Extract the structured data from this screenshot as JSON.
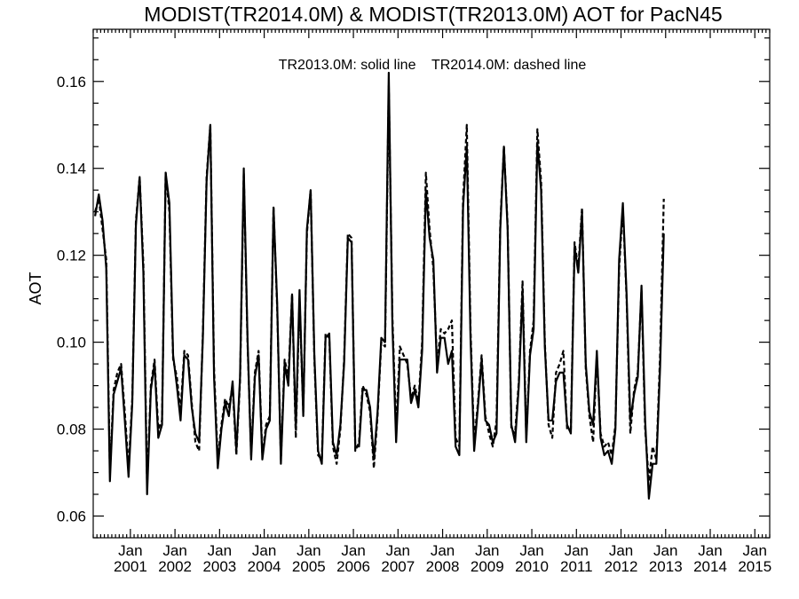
{
  "chart_data": {
    "type": "line",
    "title": "MODIST(TR2014.0M) & MODIST(TR2013.0M)  AOT for PacN45",
    "annotation": "TR2013.0M: solid line    TR2014.0M: dashed line",
    "ylabel": "AOT",
    "xlabel": "",
    "x_range": [
      "2000-03-01",
      "2015-04-30"
    ],
    "ylim": [
      0.055,
      0.172
    ],
    "y_ticks": [
      0.06,
      0.08,
      0.1,
      0.12,
      0.14,
      0.16
    ],
    "y_tick_labels": [
      "0.06",
      "0.08",
      "0.10",
      "0.12",
      "0.14",
      "0.16"
    ],
    "x_ticks": [
      "2001-01",
      "2002-01",
      "2003-01",
      "2004-01",
      "2005-01",
      "2006-01",
      "2007-01",
      "2008-01",
      "2009-01",
      "2010-01",
      "2011-01",
      "2012-01",
      "2013-01",
      "2014-01",
      "2015-01"
    ],
    "x_tick_month_label": "Jan",
    "x_tick_year_labels": [
      "2001",
      "2002",
      "2003",
      "2004",
      "2005",
      "2006",
      "2007",
      "2008",
      "2009",
      "2010",
      "2011",
      "2012",
      "2013",
      "2014",
      "2015"
    ],
    "grid": false,
    "legend": "top-center annotation text",
    "series": [
      {
        "style": "solid",
        "start": "2000-03",
        "values": [
          0.129,
          0.134,
          0.128,
          0.117,
          0.068,
          0.088,
          0.091,
          0.094,
          0.082,
          0.069,
          0.086,
          0.127,
          0.138,
          0.116,
          0.065,
          0.089,
          0.095,
          0.078,
          0.081,
          0.139,
          0.132,
          0.097,
          0.09,
          0.082,
          0.097,
          0.096,
          0.085,
          0.079,
          0.077,
          0.101,
          0.137,
          0.15,
          0.092,
          0.071,
          0.08,
          0.086,
          0.083,
          0.091,
          0.075,
          0.092,
          0.14,
          0.101,
          0.073,
          0.092,
          0.097,
          0.073,
          0.08,
          0.082,
          0.131,
          0.109,
          0.072,
          0.095,
          0.09,
          0.111,
          0.08,
          0.112,
          0.083,
          0.126,
          0.135,
          0.097,
          0.075,
          0.072,
          0.101,
          0.102,
          0.077,
          0.074,
          0.081,
          0.095,
          0.124,
          0.123,
          0.076,
          0.076,
          0.089,
          0.089,
          0.085,
          0.073,
          0.084,
          0.101,
          0.1,
          0.162,
          0.104,
          0.077,
          0.096,
          0.096,
          0.096,
          0.086,
          0.089,
          0.085,
          0.098,
          0.135,
          0.124,
          0.119,
          0.093,
          0.101,
          0.101,
          0.095,
          0.098,
          0.076,
          0.074,
          0.131,
          0.145,
          0.101,
          0.075,
          0.085,
          0.096,
          0.082,
          0.081,
          0.077,
          0.079,
          0.126,
          0.145,
          0.126,
          0.081,
          0.077,
          0.09,
          0.112,
          0.077,
          0.097,
          0.103,
          0.146,
          0.135,
          0.099,
          0.082,
          0.082,
          0.091,
          0.093,
          0.093,
          0.081,
          0.079,
          0.122,
          0.116,
          0.13,
          0.095,
          0.084,
          0.081,
          0.098,
          0.078,
          0.074,
          0.075,
          0.072,
          0.08,
          0.119,
          0.132,
          0.111,
          0.082,
          0.088,
          0.092,
          0.113,
          0.082,
          0.064,
          0.072,
          0.072,
          0.094,
          0.125
        ]
      },
      {
        "style": "dashed",
        "start": "2000-03",
        "values": [
          0.13,
          0.133,
          0.126,
          0.119,
          0.07,
          0.089,
          0.093,
          0.095,
          0.084,
          0.071,
          0.087,
          0.128,
          0.138,
          0.118,
          0.067,
          0.09,
          0.096,
          0.08,
          0.082,
          0.139,
          0.13,
          0.096,
          0.092,
          0.084,
          0.098,
          0.097,
          0.086,
          0.077,
          0.075,
          0.102,
          0.138,
          0.15,
          0.094,
          0.073,
          0.081,
          0.087,
          0.085,
          0.09,
          0.074,
          0.091,
          0.139,
          0.1,
          0.074,
          0.093,
          0.098,
          0.074,
          0.081,
          0.083,
          0.131,
          0.108,
          0.073,
          0.096,
          0.092,
          0.111,
          0.078,
          0.11,
          0.084,
          0.125,
          0.135,
          0.096,
          0.074,
          0.073,
          0.102,
          0.101,
          0.076,
          0.072,
          0.08,
          0.096,
          0.125,
          0.124,
          0.075,
          0.077,
          0.09,
          0.088,
          0.084,
          0.071,
          0.083,
          0.1,
          0.099,
          0.159,
          0.106,
          0.08,
          0.099,
          0.097,
          0.095,
          0.087,
          0.09,
          0.086,
          0.1,
          0.139,
          0.126,
          0.117,
          0.095,
          0.103,
          0.102,
          0.103,
          0.105,
          0.078,
          0.076,
          0.133,
          0.15,
          0.103,
          0.077,
          0.086,
          0.097,
          0.083,
          0.079,
          0.076,
          0.082,
          0.127,
          0.145,
          0.127,
          0.08,
          0.079,
          0.091,
          0.114,
          0.078,
          0.098,
          0.105,
          0.149,
          0.137,
          0.1,
          0.081,
          0.078,
          0.093,
          0.095,
          0.098,
          0.08,
          0.08,
          0.123,
          0.117,
          0.131,
          0.094,
          0.083,
          0.077,
          0.097,
          0.079,
          0.076,
          0.077,
          0.074,
          0.081,
          0.117,
          0.131,
          0.11,
          0.079,
          0.089,
          0.093,
          0.112,
          0.08,
          0.068,
          0.076,
          0.073,
          0.097,
          0.133
        ]
      }
    ]
  }
}
